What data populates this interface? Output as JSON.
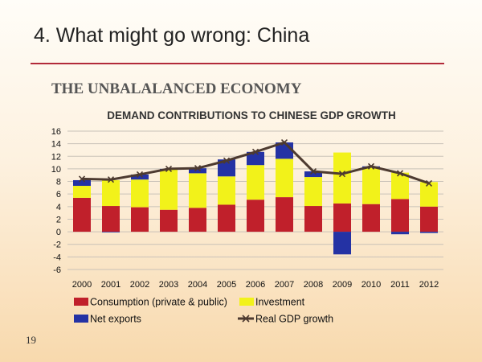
{
  "slide": {
    "title": "4. What might go wrong: China",
    "heading": "THE UNBALALANCED ECONOMY",
    "page_number": "19"
  },
  "colors": {
    "consumption": "#c0202b",
    "investment": "#f2f21a",
    "net_exports": "#2432a4",
    "gdp_line": "#4d3a30",
    "rule": "#b22a3a"
  },
  "chart_data": {
    "type": "bar",
    "stacked": true,
    "title": "DEMAND CONTRIBUTIONS TO CHINESE GDP GROWTH",
    "categories": [
      "2000",
      "2001",
      "2002",
      "2003",
      "2004",
      "2005",
      "2006",
      "2007",
      "2008",
      "2009",
      "2010",
      "2011",
      "2012"
    ],
    "ylim": [
      -6,
      16
    ],
    "yticks": [
      -6,
      -4,
      -2,
      0,
      2,
      4,
      6,
      8,
      10,
      12,
      14,
      16
    ],
    "grid": true,
    "legend_position": "bottom",
    "series": [
      {
        "name": "Consumption (private & public)",
        "type": "bar",
        "values": [
          5.4,
          4.1,
          3.9,
          3.5,
          3.8,
          4.3,
          5.1,
          5.5,
          4.1,
          4.5,
          4.4,
          5.2,
          4.0
        ]
      },
      {
        "name": "Investment",
        "type": "bar",
        "values": [
          1.9,
          4.1,
          4.4,
          6.4,
          5.5,
          4.5,
          5.5,
          6.1,
          4.6,
          8.1,
          5.8,
          4.2,
          3.9
        ]
      },
      {
        "name": "Net exports",
        "type": "bar",
        "values": [
          0.9,
          -0.1,
          0.8,
          0.1,
          0.8,
          2.7,
          2.1,
          2.6,
          0.9,
          -3.6,
          0.2,
          -0.4,
          -0.2
        ]
      },
      {
        "name": "Real GDP growth",
        "type": "line",
        "values": [
          8.4,
          8.3,
          9.1,
          10.0,
          10.1,
          11.3,
          12.7,
          14.2,
          9.6,
          9.2,
          10.4,
          9.3,
          7.7
        ]
      }
    ]
  }
}
